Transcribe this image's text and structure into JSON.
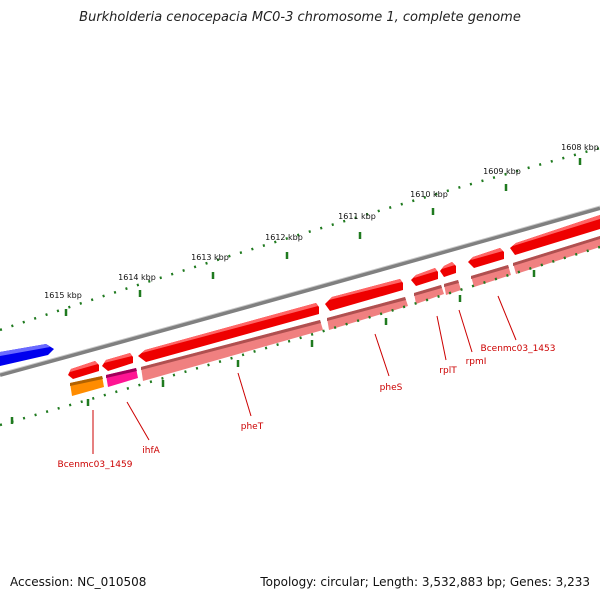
{
  "title": "Burkholderia cenocepacia MC0-3 chromosome 1, complete genome",
  "footer": {
    "accession": "Accession: NC_010508",
    "summary": "Topology: circular; Length: 3,532,883 bp; Genes: 3,233"
  },
  "scale_labels": [
    "1608 kbp",
    "1609 kbp",
    "1610 kbp",
    "1611 kbp",
    "1612 kbp",
    "1613 kbp",
    "1614 kbp",
    "1615 kbp"
  ],
  "gene_labels": [
    "Bcenmc03_1453",
    "rpmI",
    "rplT",
    "pheS",
    "pheT",
    "ihfA",
    "Bcenmc03_1459"
  ],
  "colors": {
    "cds": "#ee0000",
    "gene": "#f08080",
    "orange_feature": "#ff8c00",
    "magenta_feature": "#ff1493",
    "reverse_feature": "#0000ee",
    "backbone": "#808080",
    "ticks": "#1f7a1f",
    "label": "#cc0000"
  }
}
